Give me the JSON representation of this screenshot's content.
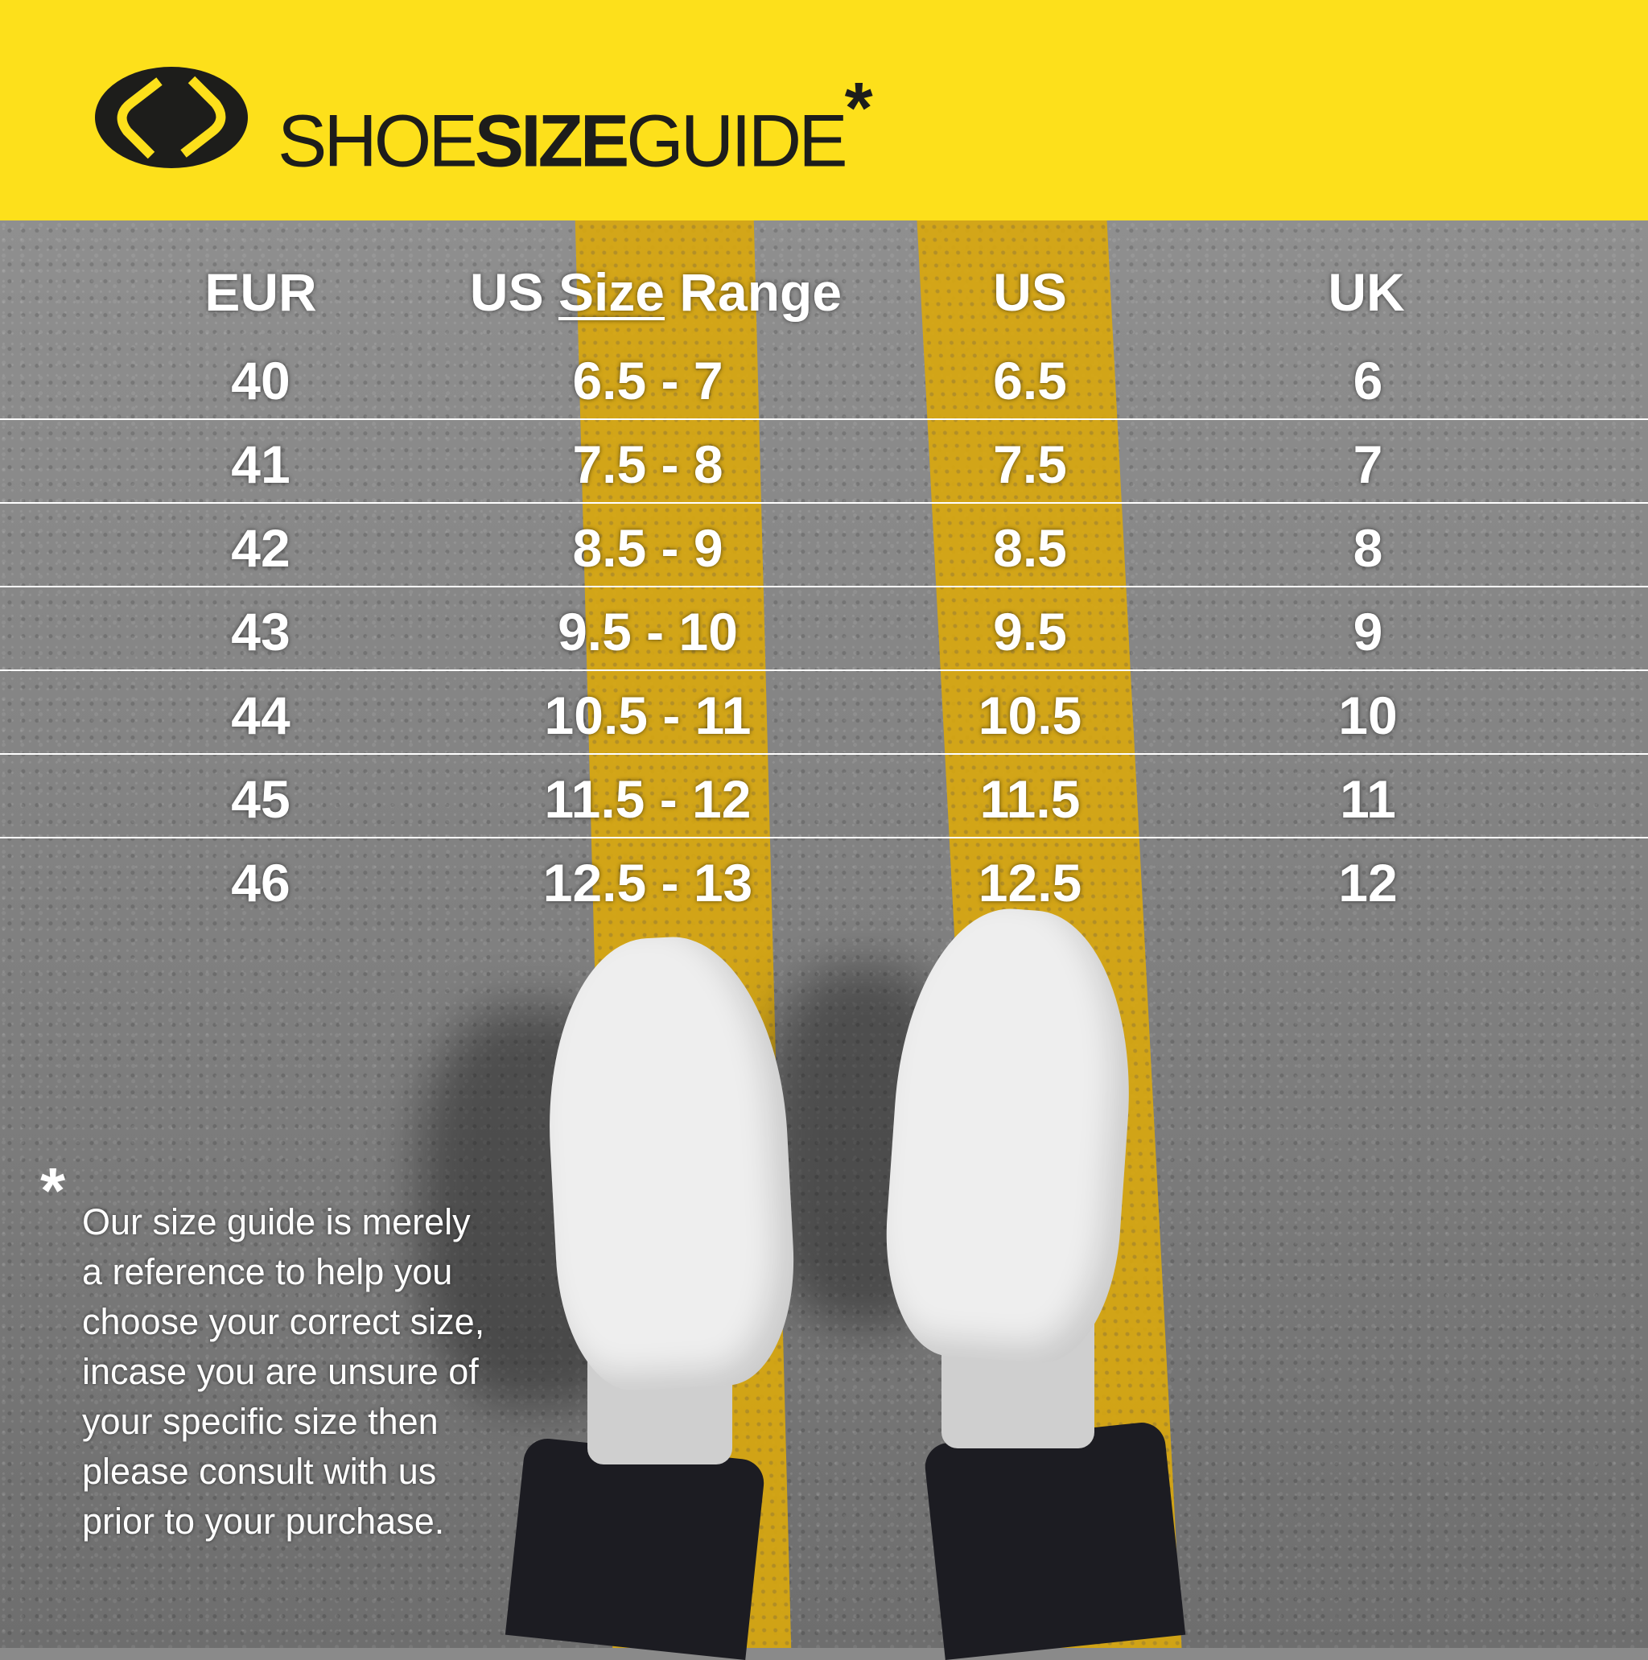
{
  "brand": {
    "part1": "SHOE",
    "part2": "SIZE",
    "part3": "GUIDE",
    "mark": "*",
    "colors": {
      "header": "#fde01b",
      "text": "#1d1d1b"
    }
  },
  "table": {
    "headers": {
      "eur": "EUR",
      "range_prefix": "US ",
      "range_underlined": "Size",
      "range_suffix": " Range",
      "us": "US",
      "uk": "UK"
    },
    "rows": [
      {
        "eur": "40",
        "range": "6.5 - 7",
        "us": "6.5",
        "uk": "6"
      },
      {
        "eur": "41",
        "range": "7.5 - 8",
        "us": "7.5",
        "uk": "7"
      },
      {
        "eur": "42",
        "range": "8.5 - 9",
        "us": "8.5",
        "uk": "8"
      },
      {
        "eur": "43",
        "range": "9.5 - 10",
        "us": "9.5",
        "uk": "9"
      },
      {
        "eur": "44",
        "range": "10.5 - 11",
        "us": "10.5",
        "uk": "10"
      },
      {
        "eur": "45",
        "range": "11.5 - 12",
        "us": "11.5",
        "uk": "11"
      },
      {
        "eur": "46",
        "range": "12.5 - 13",
        "us": "12.5",
        "uk": "12"
      }
    ]
  },
  "footnote": {
    "star": "*",
    "lines": [
      "Our size guide is merely",
      "a reference to help you",
      "choose your correct size,",
      "incase you are unsure of",
      "your specific size then",
      "please consult with us",
      "prior to your purchase."
    ]
  }
}
